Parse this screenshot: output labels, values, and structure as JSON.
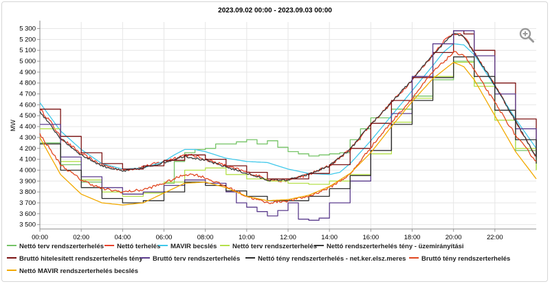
{
  "chart_data": {
    "type": "line",
    "title": "2023.09.02 00:00 - 2023.09.03 00:00",
    "ylabel": "MW",
    "xlabel": "",
    "x_ticks": [
      "00:00",
      "02:00",
      "04:00",
      "06:00",
      "08:00",
      "10:00",
      "12:00",
      "14:00",
      "16:00",
      "18:00",
      "20:00",
      "22:00"
    ],
    "y_ticks": [
      "3 500",
      "3 600",
      "3 700",
      "3 800",
      "3 900",
      "4 000",
      "4 100",
      "4 200",
      "4 300",
      "4 400",
      "4 500",
      "4 600",
      "4 700",
      "4 800",
      "4 900",
      "5 000",
      "5 100",
      "5 200",
      "5 300"
    ],
    "xlim": [
      0,
      24
    ],
    "ylim": [
      3460,
      5360
    ],
    "grid": true,
    "legend": "bottom",
    "series": [
      {
        "name": "Nettó terv rendszerterhelés",
        "color": "#74c365",
        "step": true,
        "x": [
          0,
          1,
          2,
          3,
          4,
          5,
          6,
          6.5,
          7,
          7.5,
          8,
          8.5,
          9,
          9.5,
          10,
          10.5,
          11,
          11.5,
          12,
          12.5,
          13,
          13.5,
          14,
          14.5,
          15,
          15.5,
          16,
          17,
          18,
          19,
          20,
          21,
          22,
          23,
          24
        ],
        "y": [
          4250,
          4050,
          3890,
          3800,
          3780,
          3800,
          3880,
          4080,
          4160,
          4190,
          4200,
          4240,
          4240,
          4260,
          4280,
          4240,
          4270,
          4210,
          4170,
          4150,
          4130,
          4140,
          4150,
          4160,
          4280,
          4380,
          4480,
          4560,
          4680,
          4830,
          5000,
          4800,
          4460,
          4180,
          4000
        ]
      },
      {
        "name": "Nettó terhelés",
        "color": "#e8402a",
        "noise": 14,
        "x": [
          0,
          0.5,
          1,
          2,
          3,
          4,
          5,
          6,
          7,
          7.5,
          8,
          9,
          10,
          11,
          11.5,
          12,
          13,
          14,
          15,
          16,
          17,
          18,
          19,
          19.5,
          20,
          20.5,
          21,
          22,
          23,
          24
        ],
        "y": [
          4560,
          4450,
          4300,
          4150,
          4050,
          4000,
          4030,
          4080,
          4140,
          4130,
          4100,
          4040,
          3980,
          3920,
          3900,
          3910,
          3960,
          4040,
          4190,
          4420,
          4620,
          4830,
          5060,
          5180,
          5260,
          5230,
          5080,
          4780,
          4450,
          4120
        ]
      },
      {
        "name": "MAVIR becslés",
        "color": "#3fc8ea",
        "x": [
          0,
          1,
          2,
          3,
          4,
          5,
          6,
          6.5,
          7,
          7.5,
          8,
          9,
          10,
          11,
          12,
          13,
          14,
          14.5,
          15,
          16,
          17,
          18,
          19,
          19.5,
          20,
          20.5,
          21,
          22,
          23,
          24
        ],
        "y": [
          4620,
          4360,
          4190,
          4060,
          4010,
          4020,
          4080,
          4140,
          4190,
          4190,
          4170,
          4110,
          4080,
          4070,
          4010,
          3970,
          3960,
          3980,
          4060,
          4270,
          4500,
          4730,
          4960,
          5080,
          5160,
          5150,
          5060,
          4770,
          4470,
          4200
        ]
      },
      {
        "name": "Nettó terv rendszerterhelés",
        "color": "#b4e04a",
        "step": true,
        "x": [
          0,
          1,
          2,
          3,
          4,
          5,
          6,
          7,
          8,
          9,
          10,
          11,
          12,
          13,
          14,
          15,
          16,
          17,
          18,
          19,
          20,
          21,
          22,
          23,
          24
        ],
        "y": [
          4380,
          4080,
          3910,
          3800,
          3760,
          3790,
          3890,
          4000,
          4020,
          3960,
          3920,
          3900,
          3880,
          3870,
          3900,
          3960,
          4150,
          4440,
          4660,
          4860,
          4990,
          4770,
          4460,
          4200,
          4000
        ]
      },
      {
        "name": "Nettó rendszerterhelés tény - üzemirányítási",
        "color": "#3a3a3a",
        "noise": 10,
        "x": [
          0,
          1,
          2,
          3,
          4,
          5,
          6,
          7,
          8,
          9,
          10,
          11,
          12,
          13,
          14,
          15,
          16,
          17,
          18,
          19,
          20,
          20.5,
          21,
          22,
          23,
          24
        ],
        "y": [
          4540,
          4290,
          4140,
          4040,
          3990,
          4020,
          4070,
          4130,
          4090,
          4030,
          3970,
          3910,
          3910,
          3960,
          4040,
          4190,
          4420,
          4620,
          4830,
          5060,
          5260,
          5230,
          5080,
          4780,
          4450,
          4120
        ]
      },
      {
        "name": "Bruttó hitelesített rendszerterhelés tény",
        "color": "#7a1010",
        "step": true,
        "x": [
          0,
          1,
          2,
          3,
          4,
          5,
          6,
          7,
          8,
          9,
          10,
          11,
          12,
          13,
          14,
          15,
          16,
          17,
          18,
          19,
          20,
          20.5,
          21,
          22,
          23,
          24
        ],
        "y": [
          4560,
          4310,
          4160,
          4060,
          4010,
          4040,
          4090,
          4140,
          4100,
          4040,
          3980,
          3920,
          3920,
          3970,
          4050,
          4200,
          4430,
          4640,
          4850,
          5080,
          5280,
          5250,
          5100,
          4800,
          4470,
          4140
        ]
      },
      {
        "name": "Bruttó terv rendszerterhelés",
        "color": "#5a3b8c",
        "step": true,
        "x": [
          0,
          1,
          2,
          3,
          4,
          5,
          6,
          7,
          8,
          9,
          9.5,
          10,
          10.5,
          11,
          11.5,
          12,
          12.5,
          13,
          13.5,
          14,
          15,
          16,
          17,
          18,
          19,
          20,
          21,
          22,
          23,
          24
        ],
        "y": [
          4420,
          4120,
          3940,
          3840,
          3780,
          3800,
          3860,
          3910,
          3880,
          3800,
          3700,
          3660,
          3620,
          3580,
          3630,
          3700,
          3550,
          3540,
          3560,
          3700,
          3900,
          4180,
          4520,
          4860,
          5160,
          5280,
          5050,
          4700,
          4380,
          4120
        ]
      },
      {
        "name": "Nettó tény rendszerterhelés - net.ker.elsz.meres",
        "color": "#2b2b2b",
        "step": true,
        "x": [
          0,
          1,
          2,
          3,
          4,
          5,
          6,
          7,
          8,
          9,
          10,
          11,
          12,
          13,
          14,
          15,
          16,
          17,
          18,
          19,
          20,
          21,
          22,
          23,
          24
        ],
        "y": [
          4240,
          4000,
          3840,
          3740,
          3700,
          3720,
          3800,
          3890,
          3860,
          3810,
          3760,
          3720,
          3720,
          3760,
          3830,
          3950,
          4180,
          4420,
          4640,
          4850,
          5040,
          4860,
          4550,
          4280,
          4060
        ]
      },
      {
        "name": "Bruttó tény rendszerterhelés",
        "color": "#e0451e",
        "noise": 12,
        "x": [
          0,
          1,
          2,
          3,
          4,
          5,
          6,
          7,
          7.5,
          8,
          9,
          10,
          11,
          12,
          13,
          14,
          15,
          16,
          17,
          18,
          19,
          20,
          20.5,
          21,
          22,
          23,
          24
        ],
        "y": [
          4330,
          4050,
          3910,
          3830,
          3800,
          3820,
          3880,
          3960,
          3960,
          3930,
          3850,
          3760,
          3700,
          3720,
          3760,
          3840,
          3960,
          4210,
          4440,
          4660,
          4900,
          5080,
          5060,
          4920,
          4620,
          4320,
          4080
        ]
      },
      {
        "name": "Nettó MAVIR rendszerterhelés becslés",
        "color": "#f2a900",
        "x": [
          0,
          1,
          2,
          3,
          4,
          5,
          6,
          7,
          8,
          9,
          10,
          11,
          12,
          13,
          14,
          15,
          16,
          17,
          18,
          19,
          20,
          20.5,
          21,
          22,
          23,
          24
        ],
        "y": [
          4300,
          3960,
          3780,
          3700,
          3680,
          3700,
          3790,
          3880,
          3890,
          3840,
          3760,
          3720,
          3730,
          3770,
          3850,
          3970,
          4160,
          4400,
          4630,
          4840,
          4990,
          4950,
          4830,
          4500,
          4170,
          3920
        ]
      }
    ]
  }
}
